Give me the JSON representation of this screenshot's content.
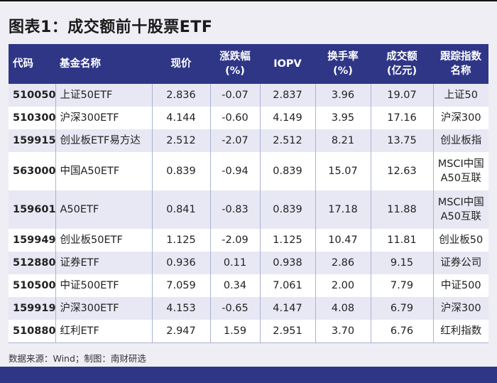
{
  "title": "图表1：成交额前十股票ETF",
  "table": {
    "headers": [
      {
        "line1": "代码",
        "line2": ""
      },
      {
        "line1": "基金名称",
        "line2": ""
      },
      {
        "line1": "现价",
        "line2": ""
      },
      {
        "line1": "涨跌幅",
        "line2": "(%)"
      },
      {
        "line1": "IOPV",
        "line2": ""
      },
      {
        "line1": "换手率",
        "line2": "(%)"
      },
      {
        "line1": "成交额",
        "line2": "(亿元)"
      },
      {
        "line1": "跟踪指数",
        "line2": "名称"
      }
    ],
    "rows": [
      {
        "code": "510050",
        "name": "上证50ETF",
        "price": "2.836",
        "change": "-0.07",
        "iopv": "2.837",
        "turnover": "3.96",
        "volume": "19.07",
        "index1": "上证50",
        "index2": ""
      },
      {
        "code": "510300",
        "name": "沪深300ETF",
        "price": "4.144",
        "change": "-0.60",
        "iopv": "4.149",
        "turnover": "3.95",
        "volume": "17.16",
        "index1": "沪深300",
        "index2": ""
      },
      {
        "code": "159915",
        "name": "创业板ETF易方达",
        "price": "2.512",
        "change": "-2.07",
        "iopv": "2.512",
        "turnover": "8.21",
        "volume": "13.75",
        "index1": "创业板指",
        "index2": ""
      },
      {
        "code": "563000",
        "name": "中国A50ETF",
        "price": "0.839",
        "change": "-0.94",
        "iopv": "0.839",
        "turnover": "15.07",
        "volume": "12.63",
        "index1": "MSCI中国",
        "index2": "A50互联"
      },
      {
        "code": "159601",
        "name": "A50ETF",
        "price": "0.841",
        "change": "-0.83",
        "iopv": "0.839",
        "turnover": "17.18",
        "volume": "11.88",
        "index1": "MSCI中国",
        "index2": "A50互联"
      },
      {
        "code": "159949",
        "name": "创业板50ETF",
        "price": "1.125",
        "change": "-2.09",
        "iopv": "1.125",
        "turnover": "10.47",
        "volume": "11.81",
        "index1": "创业板50",
        "index2": ""
      },
      {
        "code": "512880",
        "name": "证券ETF",
        "price": "0.936",
        "change": "0.11",
        "iopv": "0.938",
        "turnover": "2.86",
        "volume": "9.15",
        "index1": "证券公司",
        "index2": ""
      },
      {
        "code": "510500",
        "name": "中证500ETF",
        "price": "7.059",
        "change": "0.34",
        "iopv": "7.061",
        "turnover": "2.00",
        "volume": "7.79",
        "index1": "中证500",
        "index2": ""
      },
      {
        "code": "159919",
        "name": "沪深300ETF",
        "price": "4.153",
        "change": "-0.65",
        "iopv": "4.147",
        "turnover": "4.08",
        "volume": "6.79",
        "index1": "沪深300",
        "index2": ""
      },
      {
        "code": "510880",
        "name": "红利ETF",
        "price": "2.947",
        "change": "1.59",
        "iopv": "2.951",
        "turnover": "3.70",
        "volume": "6.76",
        "index1": "红利指数",
        "index2": ""
      }
    ]
  },
  "source": "数据来源：Wind；制图：南财研选",
  "colors": {
    "header_bg": "#2f3686",
    "stripe": "#e8e8f4",
    "page_bg": "#efeef5"
  }
}
